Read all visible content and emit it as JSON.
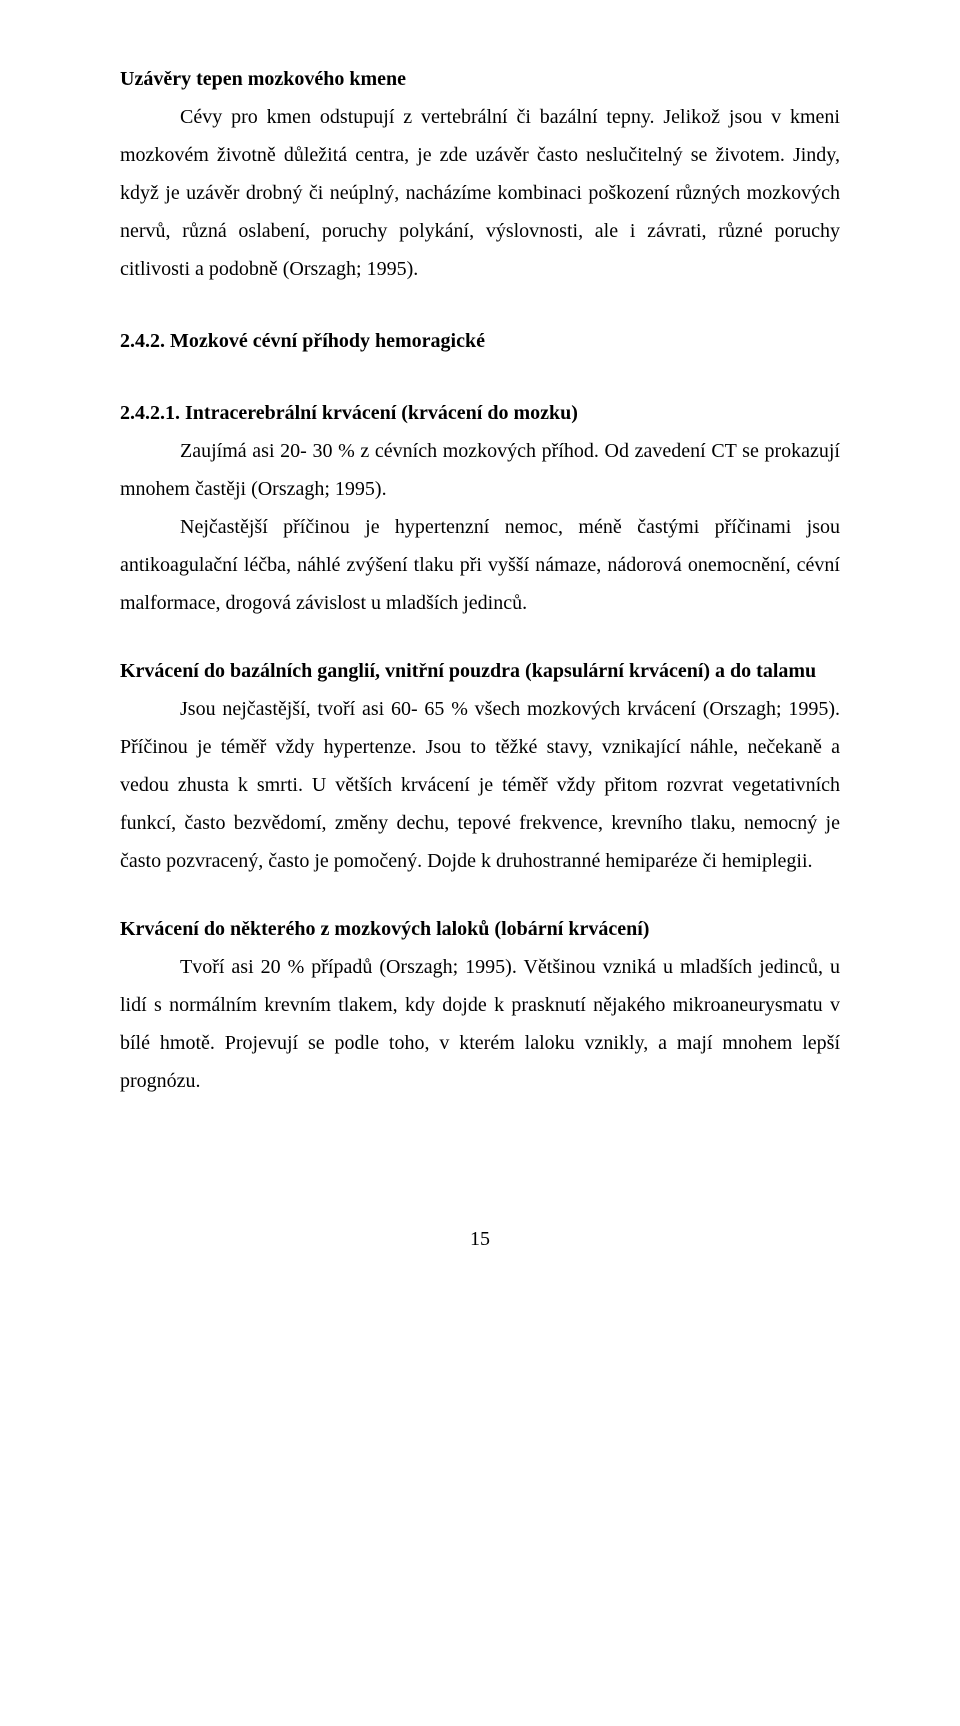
{
  "doc": {
    "h1": "Uzávěry tepen mozkového kmene",
    "p1": "Cévy pro kmen odstupují z vertebrální či bazální tepny. Jelikož jsou v kmeni mozkovém životně důležitá centra, je zde uzávěr často neslučitelný se životem. Jindy, když je uzávěr drobný či neúplný, nacházíme kombinaci poškození různých mozkových nervů, různá oslabení, poruchy polykání, výslovnosti, ale i závrati, různé poruchy citlivosti a podobně (Orszagh; 1995).",
    "h2": "2.4.2. Mozkové cévní příhody hemoragické",
    "h3": "2.4.2.1. Intracerebrální krvácení (krvácení do mozku)",
    "p2": "Zaujímá asi 20- 30 % z cévních mozkových příhod. Od zavedení CT se prokazují mnohem častěji (Orszagh; 1995).",
    "p3": "Nejčastější příčinou je hypertenzní nemoc, méně častými příčinami jsou antikoagulační léčba, náhlé zvýšení tlaku při vyšší námaze, nádorová onemocnění, cévní malformace, drogová závislost u mladších jedinců.",
    "h4": "Krvácení do bazálních ganglií, vnitřní pouzdra (kapsulární krvácení) a do talamu",
    "p4": "Jsou nejčastější, tvoří asi 60- 65 % všech mozkových krvácení (Orszagh; 1995). Příčinou je téměř vždy hypertenze. Jsou to těžké stavy, vznikající náhle, nečekaně a vedou zhusta k smrti. U větších krvácení je téměř vždy přitom rozvrat vegetativních funkcí, často bezvědomí, změny dechu, tepové frekvence, krevního tlaku, nemocný je často pozvracený, často je pomočený. Dojde k druhostranné hemiparéze či hemiplegii.",
    "h5": "Krvácení do některého z mozkových laloků (lobární krvácení)",
    "p5": "Tvoří asi 20 % případů (Orszagh; 1995). Většinou vzniká u mladších jedinců, u lidí s normálním krevním tlakem, kdy dojde k prasknutí nějakého mikroaneurysmatu v bílé hmotě. Projevují se podle toho, v kterém laloku vznikly, a mají mnohem lepší prognózu.",
    "page_number": "15"
  }
}
